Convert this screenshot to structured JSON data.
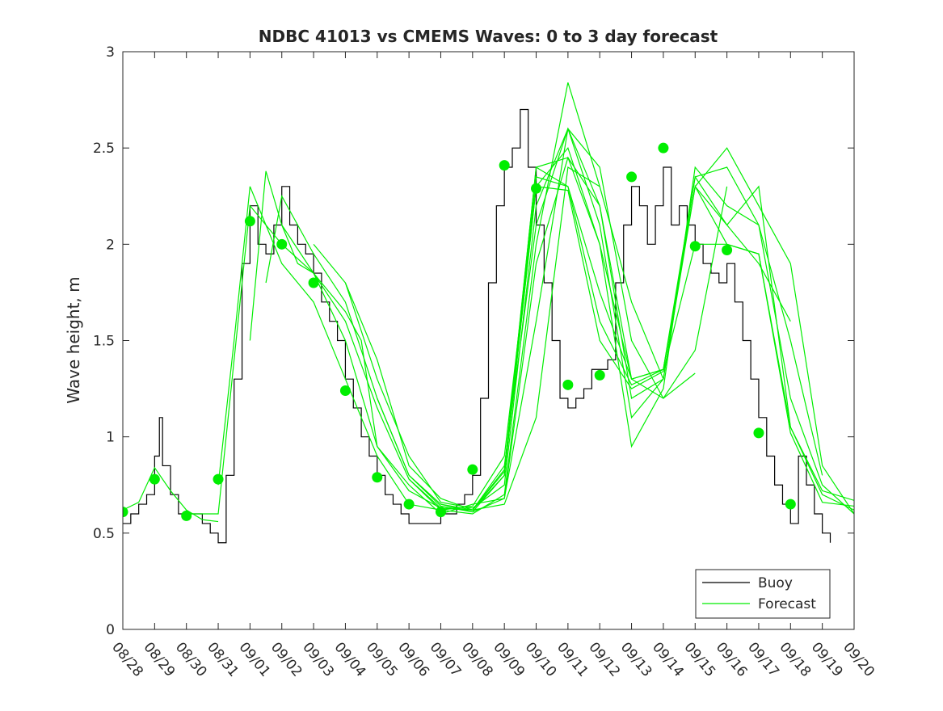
{
  "chart_data": {
    "type": "line",
    "title": "NDBC 41013 vs CMEMS Waves: 0 to 3 day forecast",
    "xlabel": "",
    "ylabel": "Wave height, m",
    "x_tick_labels": [
      "08/28",
      "08/29",
      "08/30",
      "08/31",
      "09/01",
      "09/02",
      "09/03",
      "09/04",
      "09/05",
      "09/06",
      "09/07",
      "09/08",
      "09/09",
      "09/10",
      "09/11",
      "09/12",
      "09/13",
      "09/14",
      "09/15",
      "09/16",
      "09/17",
      "09/18",
      "09/19",
      "09/20"
    ],
    "y_ticks": [
      "0",
      "0.5",
      "1",
      "1.5",
      "2",
      "2.5",
      "3"
    ],
    "xlim": [
      "08/28",
      "09/20"
    ],
    "ylim": [
      0,
      3
    ],
    "grid": false,
    "legend_position": "bottom-right",
    "colors": {
      "buoy": "#000000",
      "forecast": "#00ee00",
      "markers": "#00ee00"
    },
    "series": [
      {
        "name": "Buoy",
        "x": [
          0,
          0.25,
          0.5,
          0.75,
          1.0,
          1.15,
          1.25,
          1.5,
          1.75,
          2.0,
          2.25,
          2.5,
          2.75,
          3.0,
          3.25,
          3.5,
          3.75,
          4.0,
          4.25,
          4.5,
          4.75,
          5.0,
          5.25,
          5.5,
          5.75,
          6.0,
          6.25,
          6.5,
          6.75,
          7.0,
          7.25,
          7.5,
          7.75,
          8.0,
          8.25,
          8.5,
          8.75,
          9.0,
          9.25,
          9.5,
          9.75,
          10.0,
          10.25,
          10.5,
          10.75,
          11.0,
          11.25,
          11.5,
          11.75,
          12.0,
          12.25,
          12.5,
          12.75,
          13.0,
          13.25,
          13.5,
          13.75,
          14.0,
          14.25,
          14.5,
          14.75,
          15.0,
          15.25,
          15.5,
          15.75,
          16.0,
          16.25,
          16.5,
          16.75,
          17.0,
          17.25,
          17.5,
          17.75,
          18.0,
          18.25,
          18.5,
          18.75,
          19.0,
          19.25,
          19.5,
          19.75,
          20.0,
          20.25,
          20.5,
          20.75,
          21.0,
          21.25,
          21.5,
          21.75,
          22.0,
          22.25
        ],
        "y": [
          0.55,
          0.6,
          0.65,
          0.7,
          0.9,
          1.1,
          0.85,
          0.7,
          0.6,
          0.6,
          0.6,
          0.55,
          0.5,
          0.45,
          0.8,
          1.3,
          1.9,
          2.2,
          2.0,
          1.95,
          2.1,
          2.3,
          2.1,
          2.0,
          1.95,
          1.85,
          1.7,
          1.6,
          1.5,
          1.3,
          1.15,
          1.0,
          0.9,
          0.8,
          0.7,
          0.65,
          0.6,
          0.55,
          0.55,
          0.55,
          0.55,
          0.6,
          0.6,
          0.65,
          0.7,
          0.8,
          1.2,
          1.8,
          2.2,
          2.4,
          2.5,
          2.7,
          2.4,
          2.1,
          1.8,
          1.5,
          1.2,
          1.15,
          1.2,
          1.25,
          1.35,
          1.35,
          1.4,
          1.8,
          2.1,
          2.3,
          2.2,
          2.0,
          2.2,
          2.4,
          2.1,
          2.2,
          2.1,
          2.0,
          1.9,
          1.85,
          1.8,
          1.9,
          1.7,
          1.5,
          1.3,
          1.1,
          0.9,
          0.75,
          0.65,
          0.55,
          0.9,
          0.75,
          0.6,
          0.5,
          0.45
        ]
      },
      {
        "name": "Forecast",
        "x": [
          0,
          0.5,
          1,
          1.5,
          2,
          2.5,
          3
        ],
        "y": [
          0.62,
          0.66,
          0.84,
          0.72,
          0.62,
          0.57,
          0.56
        ]
      },
      {
        "x": [
          2,
          3,
          4,
          5,
          6,
          7,
          8,
          9,
          10,
          11,
          12,
          13,
          14,
          15
        ],
        "y": [
          0.6,
          0.6,
          2.2,
          2.0,
          1.85,
          1.5,
          0.95,
          0.72,
          0.63,
          0.62,
          0.65,
          1.1,
          2.4,
          2.3
        ]
      },
      {
        "x": [
          3,
          3.5,
          4,
          4.5,
          5,
          6,
          7,
          8,
          9,
          10,
          11,
          12,
          13
        ],
        "y": [
          0.75,
          1.5,
          2.3,
          2.1,
          1.9,
          1.7,
          1.3,
          0.9,
          0.65,
          0.62,
          0.64,
          0.9,
          2.3
        ]
      },
      {
        "x": [
          4,
          4.5,
          5,
          5.5,
          6,
          7,
          8,
          9,
          10,
          11,
          12,
          13,
          14,
          15,
          16,
          17
        ],
        "y": [
          1.5,
          2.38,
          2.1,
          1.9,
          1.85,
          1.6,
          1.15,
          0.78,
          0.62,
          0.6,
          0.7,
          2.0,
          2.84,
          2.3,
          1.7,
          1.3
        ]
      },
      {
        "x": [
          4.5,
          5,
          6,
          7,
          8,
          9,
          10,
          11,
          12,
          13,
          14,
          15,
          16,
          17,
          18
        ],
        "y": [
          1.8,
          2.25,
          1.95,
          1.7,
          1.2,
          0.8,
          0.64,
          0.61,
          0.68,
          1.6,
          2.6,
          2.4,
          1.5,
          1.2,
          1.33
        ]
      },
      {
        "x": [
          5,
          6,
          7,
          7.5,
          8,
          9,
          10,
          11,
          12,
          13,
          14,
          15,
          16,
          17,
          18,
          19
        ],
        "y": [
          2.1,
          1.85,
          1.65,
          1.5,
          0.95,
          0.75,
          0.6,
          0.65,
          0.68,
          1.9,
          2.45,
          2.2,
          1.3,
          1.2,
          1.45,
          2.3
        ]
      },
      {
        "x": [
          6,
          7,
          8,
          9,
          10,
          11,
          12,
          13,
          14,
          15,
          16,
          17,
          18,
          19,
          20,
          21
        ],
        "y": [
          2.0,
          1.8,
          1.3,
          0.9,
          0.66,
          0.63,
          0.75,
          2.2,
          2.6,
          2.1,
          1.1,
          1.3,
          2.35,
          2.1,
          1.9,
          1.6
        ]
      },
      {
        "x": [
          7,
          8,
          9,
          10,
          11,
          12,
          13,
          14,
          15,
          16,
          17,
          18,
          19,
          20,
          21,
          22
        ],
        "y": [
          1.8,
          1.4,
          0.85,
          0.68,
          0.62,
          0.8,
          2.3,
          2.5,
          2.0,
          0.95,
          1.25,
          2.4,
          2.2,
          2.1,
          1.5,
          0.8
        ]
      },
      {
        "x": [
          8,
          9,
          10,
          11,
          12,
          13,
          14,
          15,
          16,
          17,
          18,
          19,
          20,
          21,
          22,
          23
        ],
        "y": [
          1.2,
          0.8,
          0.65,
          0.62,
          0.85,
          2.1,
          2.6,
          2.2,
          1.2,
          1.3,
          2.3,
          2.5,
          2.2,
          1.9,
          0.85,
          0.6
        ]
      },
      {
        "x": [
          9,
          10,
          11,
          12,
          13,
          14,
          15,
          16,
          17,
          18,
          19,
          20,
          21,
          22,
          23
        ],
        "y": [
          0.78,
          0.63,
          0.62,
          0.82,
          2.4,
          2.45,
          2.0,
          1.3,
          1.35,
          2.35,
          2.4,
          2.1,
          1.2,
          0.75,
          0.6
        ]
      },
      {
        "x": [
          10,
          11,
          12,
          13,
          14,
          15,
          16,
          17,
          18,
          19,
          20,
          21,
          22,
          23
        ],
        "y": [
          0.65,
          0.61,
          0.8,
          2.35,
          2.3,
          1.75,
          1.3,
          1.35,
          2.3,
          2.1,
          2.3,
          1.05,
          0.7,
          0.62
        ]
      },
      {
        "x": [
          11,
          12,
          13,
          14,
          15,
          16,
          17,
          18,
          19,
          20,
          21,
          22,
          23
        ],
        "y": [
          0.62,
          0.83,
          2.4,
          2.3,
          1.6,
          1.27,
          1.35,
          2.3,
          2.0,
          1.95,
          1.05,
          0.72,
          0.67
        ]
      },
      {
        "x": [
          12,
          13,
          14,
          15,
          16,
          17,
          18,
          19,
          20,
          21,
          22,
          23
        ],
        "y": [
          0.8,
          2.3,
          2.28,
          1.5,
          1.25,
          1.34,
          2.0,
          2.0,
          1.95,
          1.02,
          0.66,
          0.64
        ]
      }
    ],
    "markers": {
      "x": [
        0,
        1,
        2,
        3,
        4,
        5,
        6,
        7,
        8,
        9,
        10,
        11,
        12,
        13,
        14,
        15,
        16,
        17,
        18,
        19,
        20,
        21
      ],
      "y": [
        0.61,
        0.78,
        0.59,
        0.78,
        2.12,
        2.0,
        1.8,
        1.24,
        0.79,
        0.65,
        0.61,
        0.83,
        2.41,
        2.29,
        1.27,
        1.32,
        2.35,
        2.5,
        1.99,
        1.97,
        1.02,
        0.65
      ]
    },
    "legend": [
      "Buoy",
      "Forecast"
    ]
  }
}
